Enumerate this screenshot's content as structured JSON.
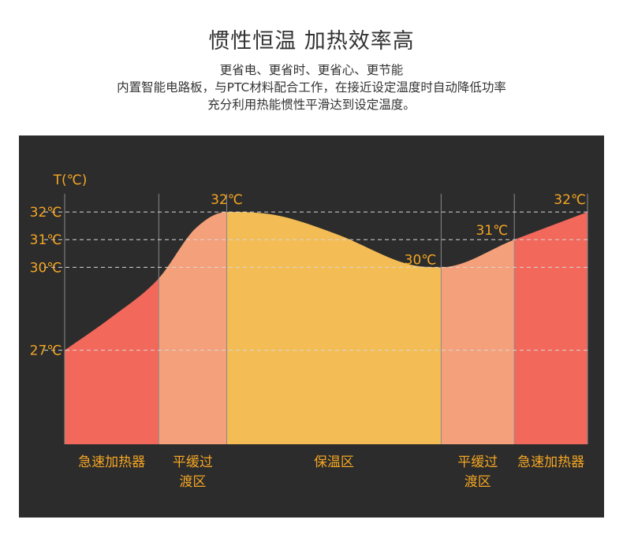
{
  "header": {
    "title": "惯性恒温 加热效率高",
    "lines": [
      "更省电、更省时、更省心、更节能",
      "内置智能电路板，与PTC材料配合工作，在接近设定温度时自动降低功率",
      "充分利用热能惯性平滑达到设定温度。"
    ]
  },
  "chart_data": {
    "type": "area",
    "title": "",
    "ylabel": "T(℃)",
    "xlabel": "",
    "y_ticks": [
      {
        "value": 32,
        "label": "32℃"
      },
      {
        "value": 31,
        "label": "31℃"
      },
      {
        "value": 30,
        "label": "30℃"
      },
      {
        "value": 27,
        "label": "27℃"
      }
    ],
    "ylim": [
      23.6,
      33.0
    ],
    "xlim": [
      0,
      100
    ],
    "curve": [
      {
        "x": 0,
        "y": 27
      },
      {
        "x": 9,
        "y": 28.2
      },
      {
        "x": 18,
        "y": 29.6
      },
      {
        "x": 25,
        "y": 31.4
      },
      {
        "x": 31,
        "y": 32
      },
      {
        "x": 40,
        "y": 31.9
      },
      {
        "x": 52,
        "y": 31.2
      },
      {
        "x": 66,
        "y": 30.1
      },
      {
        "x": 72,
        "y": 30
      },
      {
        "x": 86,
        "y": 31
      },
      {
        "x": 100,
        "y": 32
      }
    ],
    "regions": [
      {
        "name": "急速加热器",
        "lines": [
          "急速加热器"
        ],
        "x_start": 0,
        "x_end": 18,
        "color": "#f2685b"
      },
      {
        "name": "平缓过渡区",
        "lines": [
          "平缓过",
          "渡区"
        ],
        "x_start": 18,
        "x_end": 31,
        "color": "#f4a07a"
      },
      {
        "name": "保温区",
        "lines": [
          "保温区"
        ],
        "x_start": 31,
        "x_end": 72,
        "color": "#f3bc55"
      },
      {
        "name": "平缓过渡区",
        "lines": [
          "平缓过",
          "渡区"
        ],
        "x_start": 72,
        "x_end": 86,
        "color": "#f4a07a"
      },
      {
        "name": "急速加热器",
        "lines": [
          "急速加热器"
        ],
        "x_start": 86,
        "x_end": 100,
        "color": "#f2685b"
      }
    ],
    "annotations": [
      {
        "x": 31,
        "y": 32,
        "label": "32℃"
      },
      {
        "x": 72,
        "y": 30,
        "label": "30℃"
      },
      {
        "x": 86,
        "y": 31,
        "label": "31℃"
      },
      {
        "x": 100,
        "y": 32,
        "label": "32℃"
      }
    ],
    "gridlines": "dashed"
  },
  "colors": {
    "panel_bg": "#2c2c2c",
    "accent_text": "#f5a623",
    "grid": "#d8d8d8",
    "divider": "#8a8a8a"
  }
}
